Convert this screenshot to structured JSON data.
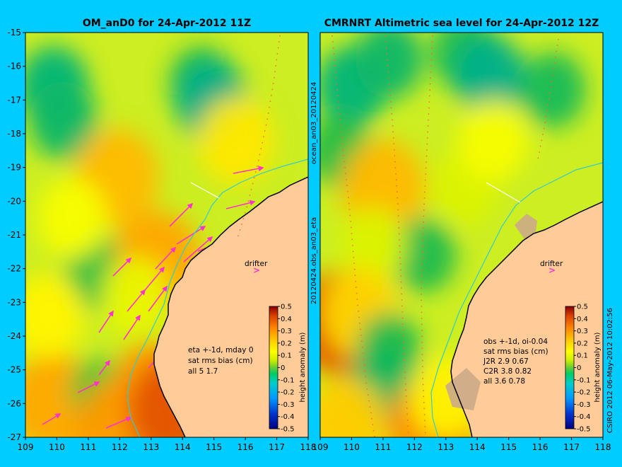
{
  "figure": {
    "background": "#00ccff",
    "land_color": "#ffcc99",
    "coast_color": "#000000",
    "river_color": "#33cccc",
    "current_arrow_color": "#ff33cc"
  },
  "chart_data": [
    {
      "type": "heatmap",
      "title": "OM_anD0 for 24-Apr-2012 11Z",
      "xlim": [
        109,
        118
      ],
      "ylim": [
        -27,
        -15
      ],
      "x_ticks": [
        "109",
        "110",
        "111",
        "112",
        "113",
        "114",
        "115",
        "116",
        "117",
        "118"
      ],
      "y_ticks": [
        "-15",
        "-16",
        "-17",
        "-18",
        "-19",
        "-20",
        "-21",
        "-22",
        "-23",
        "-24",
        "-25",
        "-26",
        "-27"
      ],
      "annotations": [
        "eta +-1d, mday 0",
        "sat rms bias (cm)",
        "all 5 1.7"
      ],
      "drifter_label": "drifter",
      "side_label": "20120424.obs_an03_eta",
      "colorbar": {
        "label": "height anomaly (m)",
        "range": [
          -0.5,
          0.5
        ],
        "ticks": [
          "0.5",
          "0.4",
          "0.3",
          "0.2",
          "0.1",
          "0",
          "-0.1",
          "-0.2",
          "-0.3",
          "-0.4",
          "-0.5"
        ]
      },
      "features": [
        {
          "x": 109.9,
          "y": -16.6,
          "v": -0.12
        },
        {
          "x": 110.2,
          "y": -17.6,
          "v": -0.1
        },
        {
          "x": 114.6,
          "y": -16.5,
          "v": -0.07
        },
        {
          "x": 114.9,
          "y": -17.0,
          "v": -0.13
        },
        {
          "x": 111.9,
          "y": -19.3,
          "v": 0.25
        },
        {
          "x": 115.7,
          "y": -18.2,
          "v": 0.17
        },
        {
          "x": 111.3,
          "y": -22.1,
          "v": -0.06
        },
        {
          "x": 109.9,
          "y": -26.0,
          "v": 0.28
        },
        {
          "x": 109.7,
          "y": -23.4,
          "v": 0.15
        },
        {
          "x": 111.4,
          "y": -25.7,
          "v": -0.04
        },
        {
          "x": 112.0,
          "y": -26.8,
          "v": 0.3
        },
        {
          "x": 113.1,
          "y": -25.7,
          "v": 0.3
        },
        {
          "x": 113.7,
          "y": -26.2,
          "v": 0.4
        },
        {
          "x": 113.2,
          "y": -21.8,
          "v": 0.28
        },
        {
          "x": 110.5,
          "y": -20.5,
          "v": 0.12
        },
        {
          "x": 112.5,
          "y": -22.8,
          "v": 0.1
        }
      ]
    },
    {
      "type": "heatmap",
      "title": "CMRNRT Altimetric sea level  for 24-Apr-2012 12Z",
      "xlim": [
        109,
        118
      ],
      "ylim": [
        -27,
        -15
      ],
      "x_ticks": [
        "109",
        "110",
        "111",
        "112",
        "113",
        "114",
        "115",
        "116",
        "117",
        "118"
      ],
      "y_ticks": [
        "-15",
        "-16",
        "-17",
        "-18",
        "-19",
        "-20",
        "-21",
        "-22",
        "-23",
        "-24",
        "-25",
        "-26",
        "-27"
      ],
      "annotations": [
        "obs +-1d, oi-0.04",
        "sat rms bias (cm)",
        "J2R   2.9 0.67",
        "C2R   3.8 0.82",
        "all 3.6 0.78"
      ],
      "drifter_label": "drifter",
      "side_label": "ocean_an03_20120424",
      "colorbar": {
        "label": "height anomaly (m)",
        "range": [
          -0.5,
          0.5
        ],
        "ticks": [
          "0.5",
          "0.4",
          "0.3",
          "0.2",
          "0.1",
          "0",
          "-0.1",
          "-0.2",
          "-0.3",
          "-0.4",
          "-0.5"
        ]
      },
      "credit": "CSIRO 2012   06-May-2012 10:02:56",
      "features": [
        {
          "x": 110.0,
          "y": -16.6,
          "v": -0.12
        },
        {
          "x": 111.2,
          "y": -15.8,
          "v": -0.1
        },
        {
          "x": 113.6,
          "y": -15.6,
          "v": -0.08
        },
        {
          "x": 114.4,
          "y": -16.3,
          "v": -0.13
        },
        {
          "x": 116.4,
          "y": -16.7,
          "v": -0.08
        },
        {
          "x": 109.6,
          "y": -18.5,
          "v": -0.06
        },
        {
          "x": 111.0,
          "y": -19.6,
          "v": 0.25
        },
        {
          "x": 113.6,
          "y": -19.6,
          "v": 0.08
        },
        {
          "x": 114.5,
          "y": -18.2,
          "v": 0.12
        },
        {
          "x": 112.3,
          "y": -21.6,
          "v": -0.07
        },
        {
          "x": 110.7,
          "y": -21.3,
          "v": 0.08
        },
        {
          "x": 109.6,
          "y": -23.6,
          "v": 0.4
        },
        {
          "x": 110.3,
          "y": -23.3,
          "v": 0.2
        },
        {
          "x": 111.2,
          "y": -24.4,
          "v": -0.07
        },
        {
          "x": 111.0,
          "y": -25.4,
          "v": -0.09
        },
        {
          "x": 109.8,
          "y": -26.6,
          "v": 0.22
        },
        {
          "x": 112.6,
          "y": -26.7,
          "v": 0.32
        },
        {
          "x": 113.0,
          "y": -25.8,
          "v": 0.15
        }
      ]
    }
  ]
}
